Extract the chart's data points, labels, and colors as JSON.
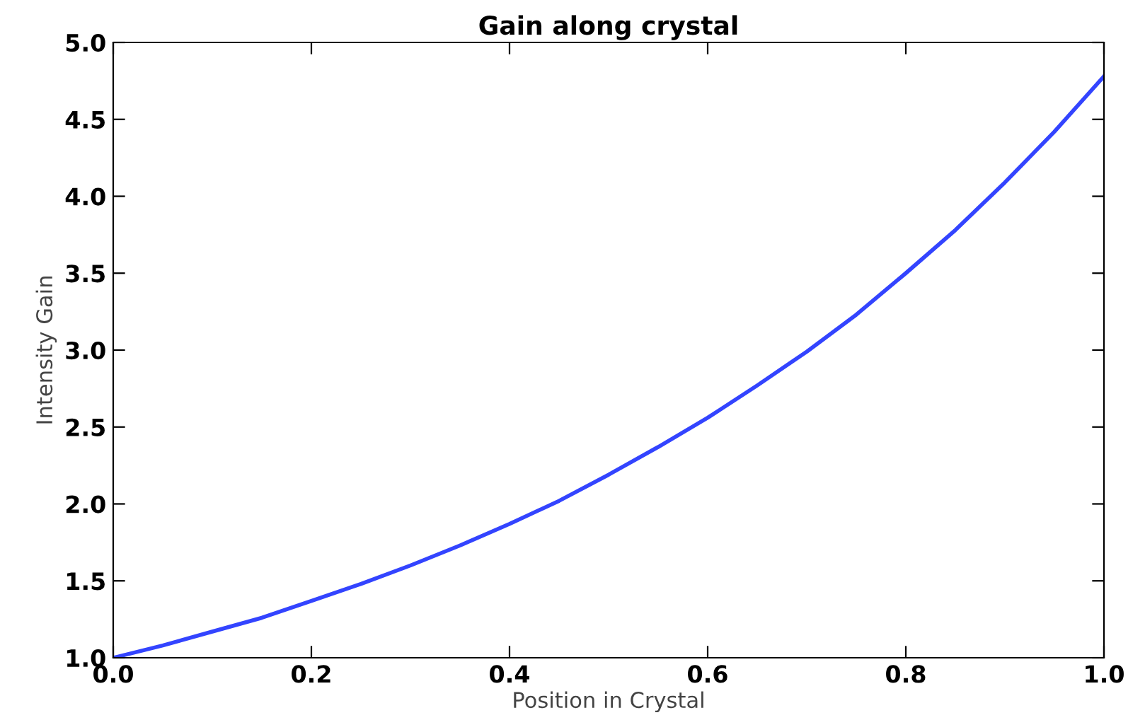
{
  "chart_data": {
    "type": "line",
    "title": "Gain along crystal",
    "xlabel": "Position in Crystal",
    "ylabel": "Intensity Gain",
    "series": [
      {
        "color": "#3344ff",
        "x": [
          0,
          0.05,
          0.1,
          0.15,
          0.2,
          0.25,
          0.3,
          0.35,
          0.4,
          0.45,
          0.5,
          0.55,
          0.6,
          0.65,
          0.7,
          0.75,
          0.8,
          0.85,
          0.9,
          0.95,
          1.0
        ],
        "values": [
          1.0,
          1.08,
          1.17,
          1.26,
          1.37,
          1.48,
          1.6,
          1.73,
          1.87,
          2.02,
          2.19,
          2.37,
          2.56,
          2.77,
          2.99,
          3.23,
          3.5,
          3.78,
          4.09,
          4.42,
          4.78
        ]
      }
    ],
    "xlim": [
      0,
      1.0
    ],
    "ylim": [
      1.0,
      5.0
    ],
    "xticks": [
      {
        "value": 0,
        "label": "0.0"
      },
      0.2,
      0.4,
      0.6,
      0.8,
      {
        "value": 1,
        "label": "1.0"
      }
    ],
    "yticks": [
      {
        "value": 1,
        "label": "1.0"
      },
      1.5,
      {
        "value": 2,
        "label": "2.0"
      },
      2.5,
      {
        "value": 3,
        "label": "3.0"
      },
      3.5,
      {
        "value": 4,
        "label": "4.0"
      },
      4.5,
      {
        "value": 5,
        "label": "5.0"
      }
    ],
    "grid": false,
    "legend": false,
    "marker": "none",
    "line_style": "solid"
  }
}
